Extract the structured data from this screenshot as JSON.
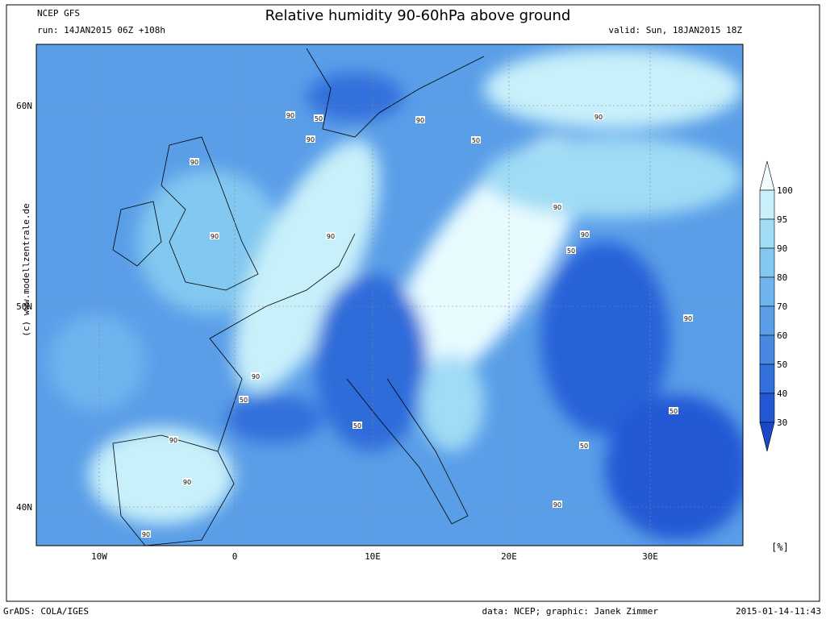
{
  "header": {
    "model": "NCEP GFS",
    "run": "run: 14JAN2015 06Z +108h",
    "title": "Relative humidity 90-60hPa above ground",
    "valid": "valid: Sun, 18JAN2015 18Z"
  },
  "map": {
    "lat_labels": [
      "60N",
      "50N",
      "40N"
    ],
    "lon_labels": [
      "10W",
      "0",
      "10E",
      "20E",
      "30E"
    ],
    "contour_labels": [
      "90",
      "50",
      "90",
      "90",
      "50",
      "90",
      "90",
      "90",
      "90",
      "90",
      "90",
      "50",
      "90",
      "90",
      "50",
      "50",
      "50",
      "50",
      "90",
      "90",
      "90",
      "90"
    ],
    "copyright": "(c) www.modellzentrale.de"
  },
  "colorbar": {
    "levels": [
      100,
      95,
      90,
      80,
      70,
      60,
      50,
      40,
      30
    ],
    "colors": [
      "#c8f0fa",
      "#a0dcf5",
      "#82c8f0",
      "#6eb4ee",
      "#5a9ee8",
      "#4688e2",
      "#3270dc",
      "#2258d4"
    ],
    "top_color": "#f2fcff",
    "bottom_color": "#1a48c8",
    "unit": "[%]"
  },
  "footer": {
    "left": "GrADS: COLA/IGES",
    "center": "data: NCEP; graphic: Janek Zimmer",
    "right": "2015-01-14-11:43"
  }
}
